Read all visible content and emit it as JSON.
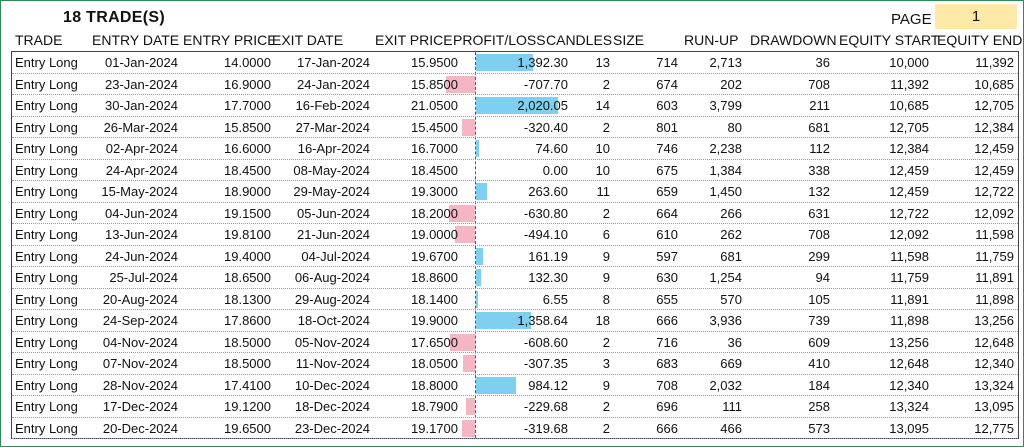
{
  "title": "18 TRADE(S)",
  "page": {
    "label": "PAGE",
    "value": "1"
  },
  "columns": [
    "TRADE",
    "ENTRY DATE",
    "ENTRY PRICE",
    "EXIT DATE",
    "EXIT PRICE",
    "PROFIT/LOSS",
    "CANDLES",
    "SIZE",
    "RUN-UP",
    "DRAWDOWN",
    "EQUITY START",
    "EQUITY END"
  ],
  "colors": {
    "positive_bar": "#7fd0f0",
    "negative_bar": "#f4b6c2",
    "page_box": "#fde9a8",
    "frame": "#2e8b57"
  },
  "rows": [
    {
      "trade": "Entry Long",
      "entry_date": "01-Jan-2024",
      "entry_price": "14.0000",
      "exit_date": "17-Jan-2024",
      "exit_price": "15.9500",
      "pl": "1,392.30",
      "pl_value": 1392.3,
      "candles": "13",
      "size": "714",
      "runup": "2,713",
      "drawdown": "36",
      "eq_start": "10,000",
      "eq_end": "11,392"
    },
    {
      "trade": "Entry Long",
      "entry_date": "23-Jan-2024",
      "entry_price": "16.9000",
      "exit_date": "24-Jan-2024",
      "exit_price": "15.8500",
      "pl": "-707.70",
      "pl_value": -707.7,
      "candles": "2",
      "size": "674",
      "runup": "202",
      "drawdown": "708",
      "eq_start": "11,392",
      "eq_end": "10,685"
    },
    {
      "trade": "Entry Long",
      "entry_date": "30-Jan-2024",
      "entry_price": "17.7000",
      "exit_date": "16-Feb-2024",
      "exit_price": "21.0500",
      "pl": "2,020.05",
      "pl_value": 2020.05,
      "candles": "14",
      "size": "603",
      "runup": "3,799",
      "drawdown": "211",
      "eq_start": "10,685",
      "eq_end": "12,705"
    },
    {
      "trade": "Entry Long",
      "entry_date": "26-Mar-2024",
      "entry_price": "15.8500",
      "exit_date": "27-Mar-2024",
      "exit_price": "15.4500",
      "pl": "-320.40",
      "pl_value": -320.4,
      "candles": "2",
      "size": "801",
      "runup": "80",
      "drawdown": "681",
      "eq_start": "12,705",
      "eq_end": "12,384"
    },
    {
      "trade": "Entry Long",
      "entry_date": "02-Apr-2024",
      "entry_price": "16.6000",
      "exit_date": "16-Apr-2024",
      "exit_price": "16.7000",
      "pl": "74.60",
      "pl_value": 74.6,
      "candles": "10",
      "size": "746",
      "runup": "2,238",
      "drawdown": "112",
      "eq_start": "12,384",
      "eq_end": "12,459"
    },
    {
      "trade": "Entry Long",
      "entry_date": "24-Apr-2024",
      "entry_price": "18.4500",
      "exit_date": "08-May-2024",
      "exit_price": "18.4500",
      "pl": "0.00",
      "pl_value": 0,
      "candles": "10",
      "size": "675",
      "runup": "1,384",
      "drawdown": "338",
      "eq_start": "12,459",
      "eq_end": "12,459"
    },
    {
      "trade": "Entry Long",
      "entry_date": "15-May-2024",
      "entry_price": "18.9000",
      "exit_date": "29-May-2024",
      "exit_price": "19.3000",
      "pl": "263.60",
      "pl_value": 263.6,
      "candles": "11",
      "size": "659",
      "runup": "1,450",
      "drawdown": "132",
      "eq_start": "12,459",
      "eq_end": "12,722"
    },
    {
      "trade": "Entry Long",
      "entry_date": "04-Jun-2024",
      "entry_price": "19.1500",
      "exit_date": "05-Jun-2024",
      "exit_price": "18.2000",
      "pl": "-630.80",
      "pl_value": -630.8,
      "candles": "2",
      "size": "664",
      "runup": "266",
      "drawdown": "631",
      "eq_start": "12,722",
      "eq_end": "12,092"
    },
    {
      "trade": "Entry Long",
      "entry_date": "13-Jun-2024",
      "entry_price": "19.8100",
      "exit_date": "21-Jun-2024",
      "exit_price": "19.0000",
      "pl": "-494.10",
      "pl_value": -494.1,
      "candles": "6",
      "size": "610",
      "runup": "262",
      "drawdown": "708",
      "eq_start": "12,092",
      "eq_end": "11,598"
    },
    {
      "trade": "Entry Long",
      "entry_date": "24-Jun-2024",
      "entry_price": "19.4000",
      "exit_date": "04-Jul-2024",
      "exit_price": "19.6700",
      "pl": "161.19",
      "pl_value": 161.19,
      "candles": "9",
      "size": "597",
      "runup": "681",
      "drawdown": "299",
      "eq_start": "11,598",
      "eq_end": "11,759"
    },
    {
      "trade": "Entry Long",
      "entry_date": "25-Jul-2024",
      "entry_price": "18.6500",
      "exit_date": "06-Aug-2024",
      "exit_price": "18.8600",
      "pl": "132.30",
      "pl_value": 132.3,
      "candles": "9",
      "size": "630",
      "runup": "1,254",
      "drawdown": "94",
      "eq_start": "11,759",
      "eq_end": "11,891"
    },
    {
      "trade": "Entry Long",
      "entry_date": "20-Aug-2024",
      "entry_price": "18.1300",
      "exit_date": "29-Aug-2024",
      "exit_price": "18.1400",
      "pl": "6.55",
      "pl_value": 6.55,
      "candles": "8",
      "size": "655",
      "runup": "570",
      "drawdown": "105",
      "eq_start": "11,891",
      "eq_end": "11,898"
    },
    {
      "trade": "Entry Long",
      "entry_date": "24-Sep-2024",
      "entry_price": "17.8600",
      "exit_date": "18-Oct-2024",
      "exit_price": "19.9000",
      "pl": "1,358.64",
      "pl_value": 1358.64,
      "candles": "18",
      "size": "666",
      "runup": "3,936",
      "drawdown": "739",
      "eq_start": "11,898",
      "eq_end": "13,256"
    },
    {
      "trade": "Entry Long",
      "entry_date": "04-Nov-2024",
      "entry_price": "18.5000",
      "exit_date": "05-Nov-2024",
      "exit_price": "17.6500",
      "pl": "-608.60",
      "pl_value": -608.6,
      "candles": "2",
      "size": "716",
      "runup": "36",
      "drawdown": "609",
      "eq_start": "13,256",
      "eq_end": "12,648"
    },
    {
      "trade": "Entry Long",
      "entry_date": "07-Nov-2024",
      "entry_price": "18.5000",
      "exit_date": "11-Nov-2024",
      "exit_price": "18.0500",
      "pl": "-307.35",
      "pl_value": -307.35,
      "candles": "3",
      "size": "683",
      "runup": "669",
      "drawdown": "410",
      "eq_start": "12,648",
      "eq_end": "12,340"
    },
    {
      "trade": "Entry Long",
      "entry_date": "28-Nov-2024",
      "entry_price": "17.4100",
      "exit_date": "10-Dec-2024",
      "exit_price": "18.8000",
      "pl": "984.12",
      "pl_value": 984.12,
      "candles": "9",
      "size": "708",
      "runup": "2,032",
      "drawdown": "184",
      "eq_start": "12,340",
      "eq_end": "13,324"
    },
    {
      "trade": "Entry Long",
      "entry_date": "17-Dec-2024",
      "entry_price": "19.1200",
      "exit_date": "18-Dec-2024",
      "exit_price": "18.7900",
      "pl": "-229.68",
      "pl_value": -229.68,
      "candles": "2",
      "size": "696",
      "runup": "111",
      "drawdown": "258",
      "eq_start": "13,324",
      "eq_end": "13,095"
    },
    {
      "trade": "Entry Long",
      "entry_date": "20-Dec-2024",
      "entry_price": "19.6500",
      "exit_date": "23-Dec-2024",
      "exit_price": "19.1700",
      "pl": "-319.68",
      "pl_value": -319.68,
      "candles": "2",
      "size": "666",
      "runup": "466",
      "drawdown": "573",
      "eq_start": "13,095",
      "eq_end": "12,775"
    }
  ]
}
